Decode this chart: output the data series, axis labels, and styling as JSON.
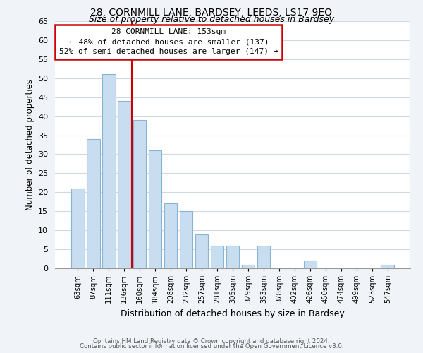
{
  "title1": "28, CORNMILL LANE, BARDSEY, LEEDS, LS17 9EQ",
  "title2": "Size of property relative to detached houses in Bardsey",
  "xlabel": "Distribution of detached houses by size in Bardsey",
  "ylabel": "Number of detached properties",
  "categories": [
    "63sqm",
    "87sqm",
    "111sqm",
    "136sqm",
    "160sqm",
    "184sqm",
    "208sqm",
    "232sqm",
    "257sqm",
    "281sqm",
    "305sqm",
    "329sqm",
    "353sqm",
    "378sqm",
    "402sqm",
    "426sqm",
    "450sqm",
    "474sqm",
    "499sqm",
    "523sqm",
    "547sqm"
  ],
  "values": [
    21,
    34,
    51,
    44,
    39,
    31,
    17,
    15,
    9,
    6,
    6,
    1,
    6,
    0,
    0,
    2,
    0,
    0,
    0,
    0,
    1
  ],
  "bar_color": "#c8ddf0",
  "bar_edge_color": "#8ab4d4",
  "vline_color": "#cc0000",
  "annotation_line1": "28 CORNMILL LANE: 153sqm",
  "annotation_line2": "← 48% of detached houses are smaller (137)",
  "annotation_line3": "52% of semi-detached houses are larger (147) →",
  "annotation_box_facecolor": "#ffffff",
  "annotation_box_edgecolor": "#cc0000",
  "ylim": [
    0,
    65
  ],
  "yticks": [
    0,
    5,
    10,
    15,
    20,
    25,
    30,
    35,
    40,
    45,
    50,
    55,
    60,
    65
  ],
  "footer1": "Contains HM Land Registry data © Crown copyright and database right 2024.",
  "footer2": "Contains public sector information licensed under the Open Government Licence v3.0.",
  "background_color": "#f0f4f8",
  "plot_background_color": "#ffffff",
  "grid_color": "#d0d8e0"
}
